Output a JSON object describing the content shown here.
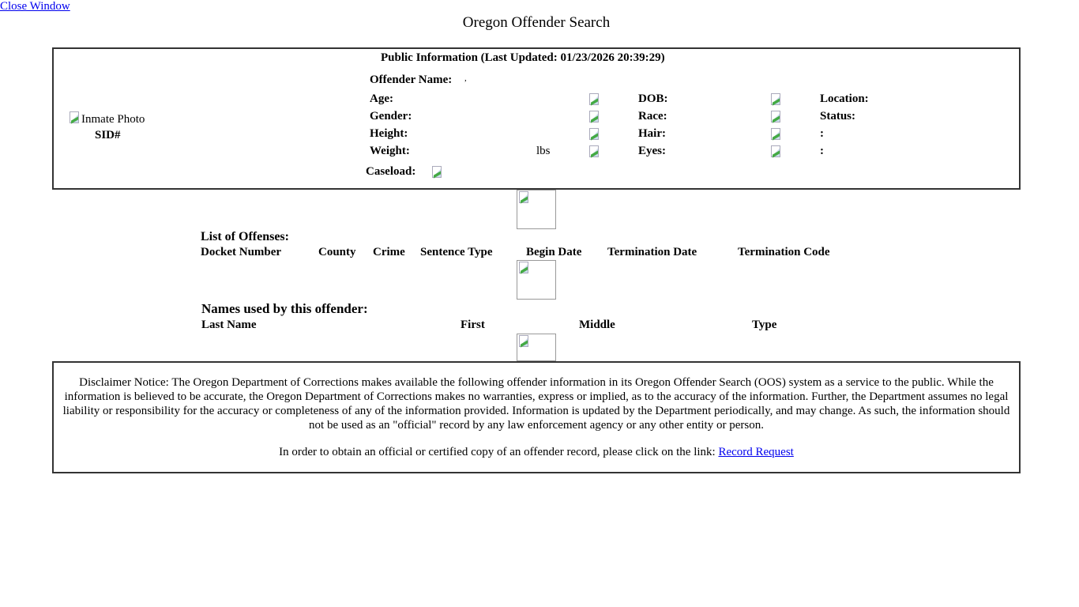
{
  "close_window": "Close Window",
  "page_title": "Oregon Offender Search",
  "profile": {
    "header": "Public Information (Last Updated: 01/23/2026 20:39:29)",
    "photo_alt": "Inmate Photo",
    "sid_label": "SID#",
    "offender_name_label": "Offender Name:",
    "offender_name_value": ",",
    "col1": [
      {
        "label": "Age:",
        "value": ""
      },
      {
        "label": "Gender:",
        "value": ""
      },
      {
        "label": "Height:",
        "value": ""
      },
      {
        "label": "Weight:",
        "value": "lbs"
      }
    ],
    "col2": [
      "DOB:",
      "Race:",
      "Hair:",
      "Eyes:"
    ],
    "col3": [
      "Location:",
      "Status:",
      ":",
      ":"
    ],
    "caseload_label": "Caseload:"
  },
  "offenses": {
    "title": "List of Offenses:",
    "columns": [
      "Docket Number",
      "County",
      "Crime",
      "Sentence Type",
      "Begin Date",
      "Termination Date",
      "Termination Code"
    ]
  },
  "names": {
    "title": "Names used by this offender:",
    "columns": [
      "Last Name",
      "First",
      "Middle",
      "Type"
    ]
  },
  "disclaimer": {
    "text": "Disclaimer Notice: The Oregon Department of Corrections makes available the following offender information in its Oregon Offender Search (OOS) system as a service to the public. While the information is believed to be accurate, the Oregon Department of Corrections makes no warranties, express or implied, as to the accuracy of the information. Further, the Department assumes no legal liability or responsibility for the accuracy or completeness of any of the information provided. Information is updated by the Department periodically, and may change. As such, the information should not be used as an \"official\" record by any law enforcement agency or any other entity or person.",
    "record_prefix": "In order to obtain an official or certified copy of an offender record, please click on the link:",
    "record_link": "Record Request"
  }
}
